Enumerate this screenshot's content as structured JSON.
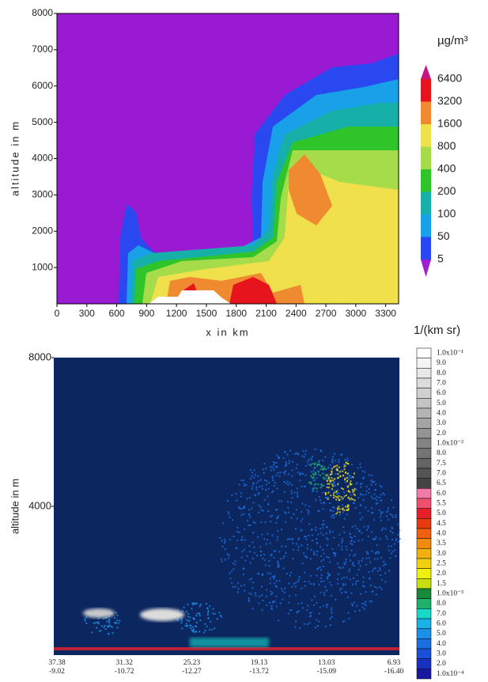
{
  "chart_data": [
    {
      "type": "contour",
      "x_label": "x in km",
      "y_label": "altitude in m",
      "xlim": [
        0,
        3430
      ],
      "ylim": [
        0,
        8000
      ],
      "xticks": [
        0,
        300,
        600,
        900,
        1200,
        1500,
        1800,
        2100,
        2400,
        2700,
        3000,
        3300
      ],
      "yticks": [
        1000,
        2000,
        3000,
        4000,
        5000,
        6000,
        7000,
        8000
      ],
      "colorbar": {
        "title": "µg/m³",
        "levels": [
          6400,
          3200,
          1600,
          800,
          400,
          200,
          100,
          50,
          5
        ],
        "colors": [
          "#c8147e",
          "#e6141c",
          "#f08a30",
          "#efe04c",
          "#a6dc4a",
          "#2ec42a",
          "#16b0a8",
          "#18a0e8",
          "#2a48f0",
          "#a01ed2"
        ]
      }
    },
    {
      "type": "lidar",
      "y_label": "altitude in m",
      "ylim": [
        0,
        8000
      ],
      "yticks": [
        4000,
        8000
      ],
      "lat": [
        "37.38",
        "31.32",
        "25.23",
        "19.13",
        "13.03",
        "6.93"
      ],
      "lon": [
        "-9.02",
        "-10.72",
        "-12.27",
        "-13.72",
        "-15.09",
        "-16.40"
      ],
      "colorbar": {
        "title": "1/(km sr)",
        "labels": [
          "1.0x10⁻¹",
          "9.0",
          "8.0",
          "7.0",
          "6.0",
          "5.0",
          "4.0",
          "3.0",
          "2.0",
          "1.0x10⁻²",
          "8.0",
          "7.5",
          "7.0",
          "6.5",
          "6.0",
          "5.5",
          "5.0",
          "4.5",
          "4.0",
          "3.5",
          "3.0",
          "2.5",
          "2.0",
          "1.5",
          "1.0x10⁻³",
          "8.0",
          "7.0",
          "6.0",
          "5.0",
          "4.0",
          "3.0",
          "2.0",
          "1.0x10⁻⁴"
        ],
        "colors": [
          "#ffffff",
          "#f4f4f4",
          "#e8e8e8",
          "#dcdcdc",
          "#d0d0d0",
          "#c4c4c4",
          "#b4b4b4",
          "#a4a4a4",
          "#949494",
          "#848484",
          "#747474",
          "#646464",
          "#545454",
          "#444444",
          "#f07aa8",
          "#f0506e",
          "#e8202a",
          "#e83a10",
          "#f06010",
          "#f08a10",
          "#f0b010",
          "#f0d010",
          "#f0f010",
          "#c8e010",
          "#188a3a",
          "#20b06a",
          "#18d8c8",
          "#1ab0e8",
          "#1a90e8",
          "#1a70e0",
          "#1a50d8",
          "#1830c0",
          "#1818a0"
        ]
      }
    }
  ]
}
